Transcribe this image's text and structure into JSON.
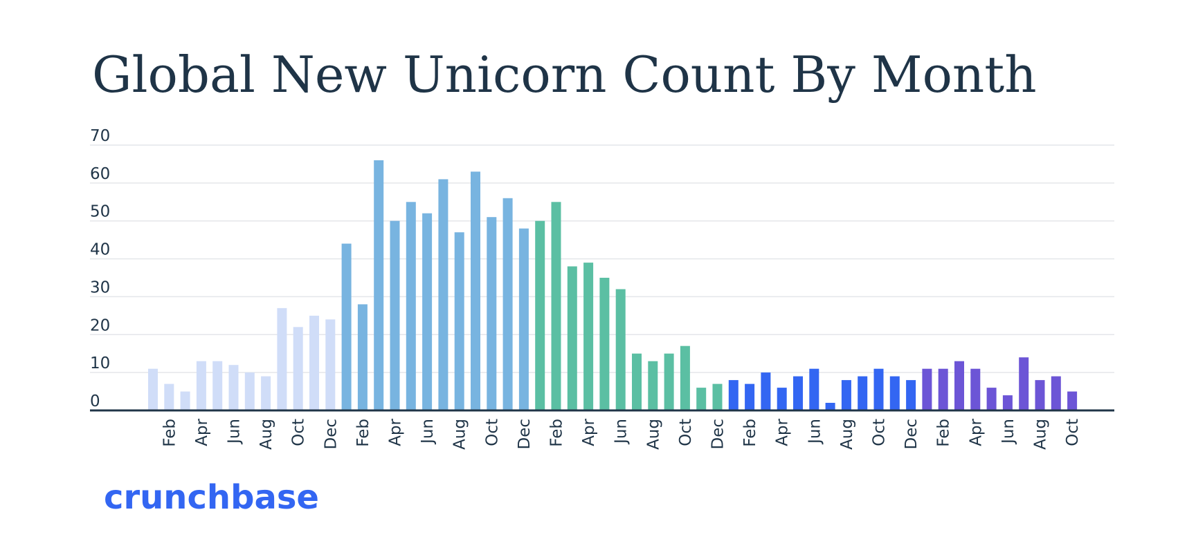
{
  "chart_data": {
    "type": "bar",
    "title": "Global New Unicorn Count By Month",
    "xlabel": "",
    "ylabel": "",
    "ylim": [
      0,
      70
    ],
    "yticks": [
      0,
      10,
      20,
      30,
      40,
      50,
      60,
      70
    ],
    "grid": true,
    "x_tick_labels": [
      "",
      "Feb",
      "",
      "Apr",
      "",
      "Jun",
      "",
      "Aug",
      "",
      "Oct",
      "",
      "Dec",
      "",
      "Feb",
      "",
      "Apr",
      "",
      "Jun",
      "",
      "Aug",
      "",
      "Oct",
      "",
      "Dec",
      "",
      "Feb",
      "",
      "Apr",
      "",
      "Jun",
      "",
      "Aug",
      "",
      "Oct",
      "",
      "Dec",
      "",
      "Feb",
      "",
      "Apr",
      "",
      "Jun",
      "",
      "Aug",
      "",
      "Oct",
      "",
      "Dec",
      "",
      "Feb",
      "",
      "Apr",
      "",
      "Jun",
      "",
      "Aug",
      "",
      "Oct"
    ],
    "series": [
      {
        "color": "#d0ddf8",
        "values": [
          11,
          7,
          5,
          13,
          13,
          12,
          10,
          9,
          27,
          22,
          25,
          24
        ]
      },
      {
        "color": "#78b4e0",
        "values": [
          44,
          28,
          66,
          50,
          55,
          52,
          61,
          47,
          63,
          51,
          56,
          48
        ]
      },
      {
        "color": "#5bbfa3",
        "values": [
          50,
          55,
          38,
          39,
          35,
          32,
          15,
          13,
          15,
          17,
          6,
          7
        ]
      },
      {
        "color": "#3366f2",
        "values": [
          8,
          7,
          10,
          6,
          9,
          11,
          2,
          8,
          9,
          11,
          9,
          8
        ]
      },
      {
        "color": "#6c55d6",
        "values": [
          11,
          11,
          13,
          11,
          6,
          4,
          14,
          8,
          9,
          5
        ]
      }
    ]
  },
  "brand": {
    "logo_text": "crunchbase",
    "logo_color": "#3366f2"
  }
}
